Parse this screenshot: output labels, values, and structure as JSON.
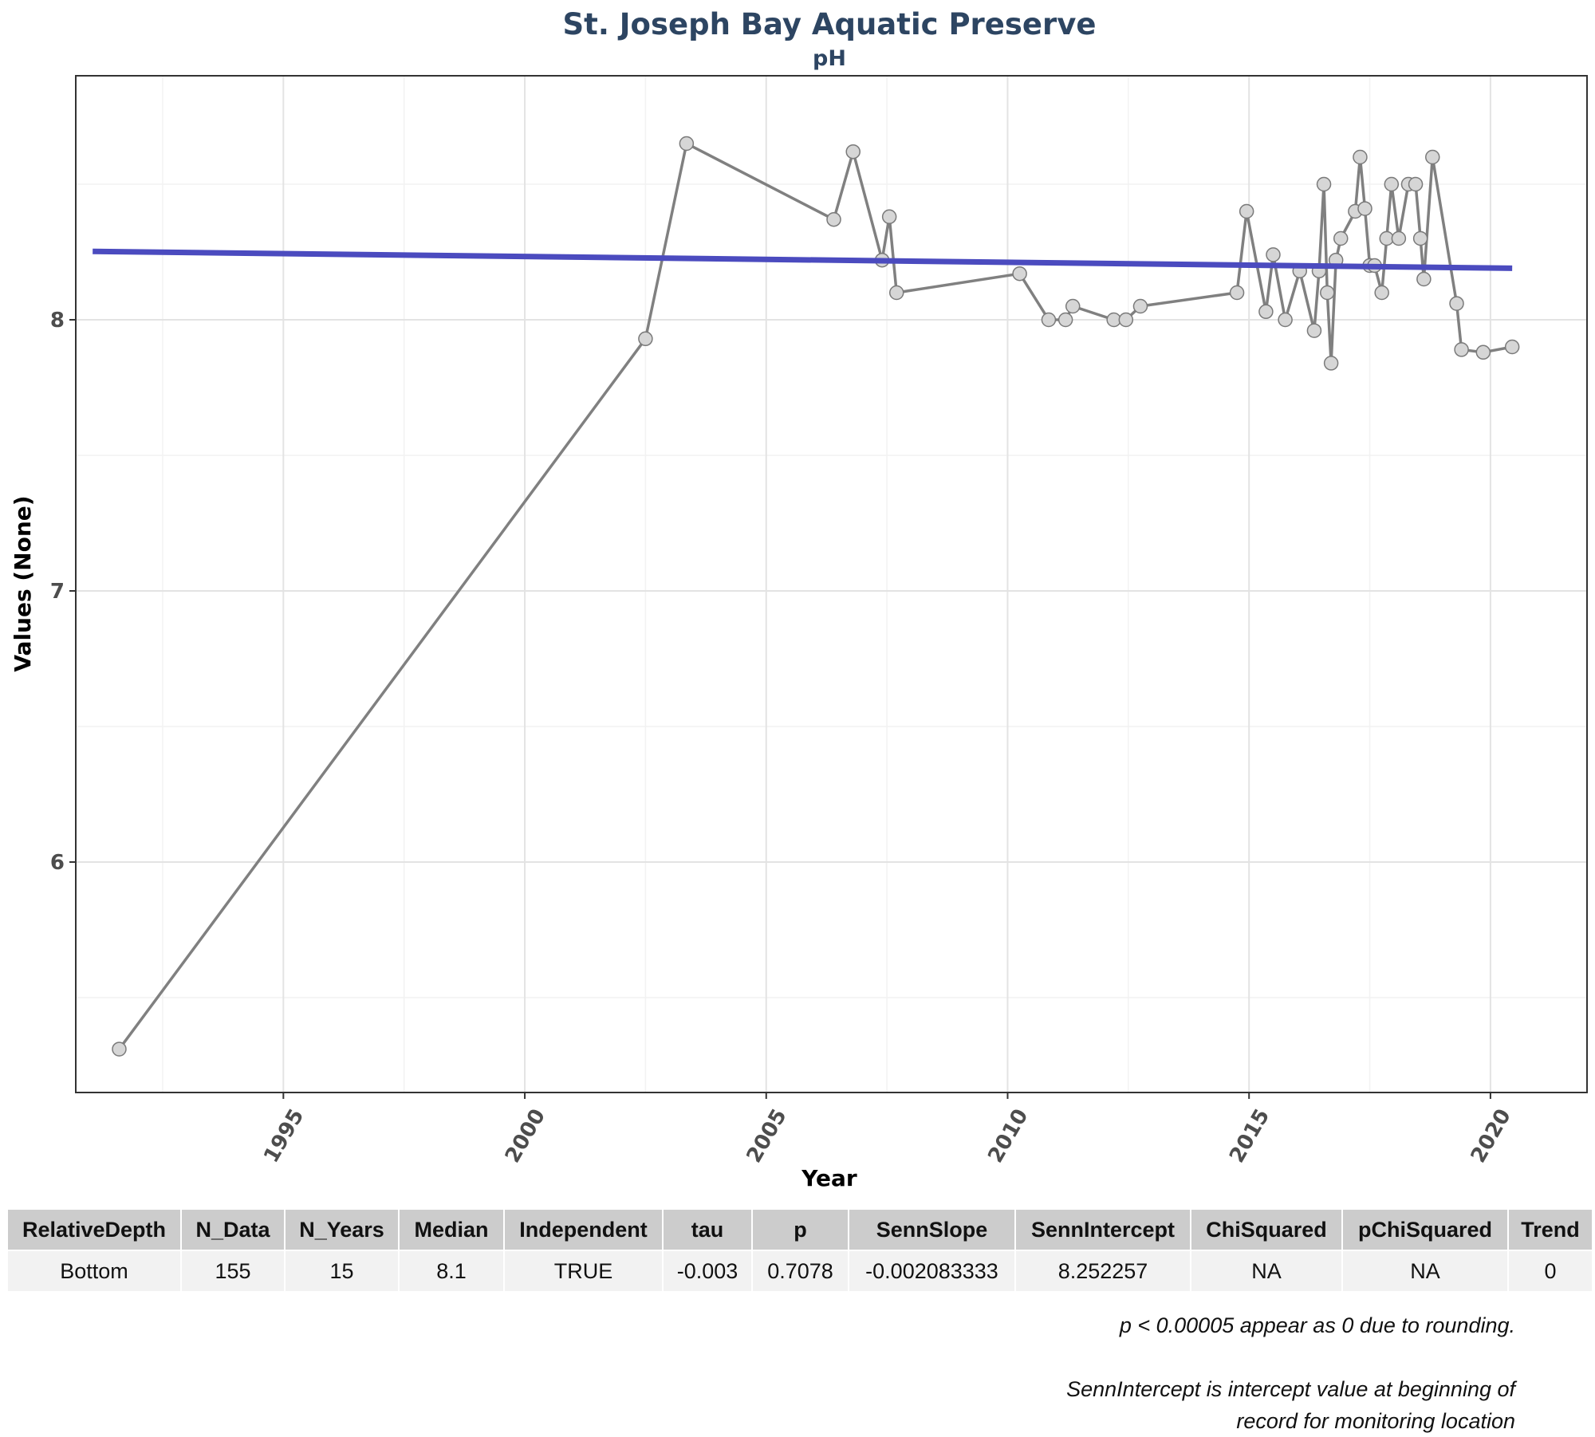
{
  "chart_data": {
    "type": "line",
    "title": "St. Joseph Bay Aquatic Preserve",
    "subtitle": "pH",
    "xlabel": "Year",
    "ylabel": "Values (None)",
    "xlim": [
      1990.7,
      2022.0
    ],
    "ylim": [
      5.15,
      8.9
    ],
    "x_ticks": [
      1995,
      2000,
      2005,
      2010,
      2015,
      2020
    ],
    "x_minor_ticks": [
      1992.5,
      1997.5,
      2002.5,
      2007.5,
      2012.5,
      2017.5
    ],
    "y_ticks": [
      6,
      7,
      8
    ],
    "y_minor_ticks": [
      5.5,
      6.5,
      7.5,
      8.5
    ],
    "grid": true,
    "series": [
      {
        "type": "line-points",
        "color": "#808080",
        "x": [
          1991.6,
          2002.5,
          2003.35,
          2006.4,
          2006.8,
          2007.4,
          2007.55,
          2007.7,
          2010.25,
          2010.85,
          2011.2,
          2011.35,
          2012.2,
          2012.45,
          2012.75,
          2014.75,
          2014.95,
          2015.35,
          2015.5,
          2015.75,
          2016.05,
          2016.35,
          2016.45,
          2016.55,
          2016.62,
          2016.7,
          2016.8,
          2016.9,
          2017.2,
          2017.3,
          2017.4,
          2017.5,
          2017.6,
          2017.75,
          2017.85,
          2017.95,
          2018.1,
          2018.3,
          2018.45,
          2018.55,
          2018.62,
          2018.8,
          2019.3,
          2019.4,
          2019.85,
          2020.45
        ],
        "y": [
          5.31,
          7.93,
          8.65,
          8.37,
          8.62,
          8.22,
          8.38,
          8.1,
          8.17,
          8.0,
          8.0,
          8.05,
          8.0,
          8.0,
          8.05,
          8.1,
          8.4,
          8.03,
          8.24,
          8.0,
          8.18,
          7.96,
          8.18,
          8.5,
          8.1,
          7.84,
          8.22,
          8.3,
          8.4,
          8.6,
          8.41,
          8.2,
          8.2,
          8.1,
          8.3,
          8.5,
          8.3,
          8.5,
          8.5,
          8.3,
          8.15,
          8.6,
          8.06,
          7.89,
          7.88,
          7.9
        ]
      },
      {
        "type": "trend",
        "color": "#4b4bbf",
        "x": [
          1991.05,
          2020.45
        ],
        "y": [
          8.252257,
          8.19
        ]
      }
    ]
  },
  "stats_table": {
    "headers": [
      "RelativeDepth",
      "N_Data",
      "N_Years",
      "Median",
      "Independent",
      "tau",
      "p",
      "SennSlope",
      "SennIntercept",
      "ChiSquared",
      "pChiSquared",
      "Trend"
    ],
    "rows": [
      [
        "Bottom",
        "155",
        "15",
        "8.1",
        "TRUE",
        "-0.003",
        "0.7078",
        "-0.002083333",
        "8.252257",
        "NA",
        "NA",
        "0"
      ]
    ]
  },
  "notes": {
    "rounding": "p < 0.00005 appear as 0 due to rounding.",
    "intercept_line1": "SennIntercept is intercept value at beginning of",
    "intercept_line2": "record for monitoring location"
  }
}
